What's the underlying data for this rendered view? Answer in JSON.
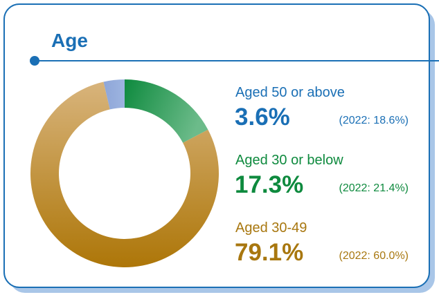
{
  "chart_data": {
    "type": "pie",
    "title": "Age",
    "categories": [
      "Aged 30 or below",
      "Aged 30-49",
      "Aged 50 or above"
    ],
    "values": [
      17.3,
      79.1,
      3.6
    ],
    "value_labels": [
      "17.3%",
      "79.1%",
      "3.6%"
    ],
    "comparisons": [
      "(2022: 21.4%)",
      "(2022: 60.0%)",
      "(2022: 18.6%)"
    ],
    "colors": [
      "#14904a",
      "#b47e1c",
      "#8ea6d8"
    ],
    "label_colors": [
      "#0e8a3e",
      "#a8770f",
      "#1a6fb5"
    ]
  }
}
